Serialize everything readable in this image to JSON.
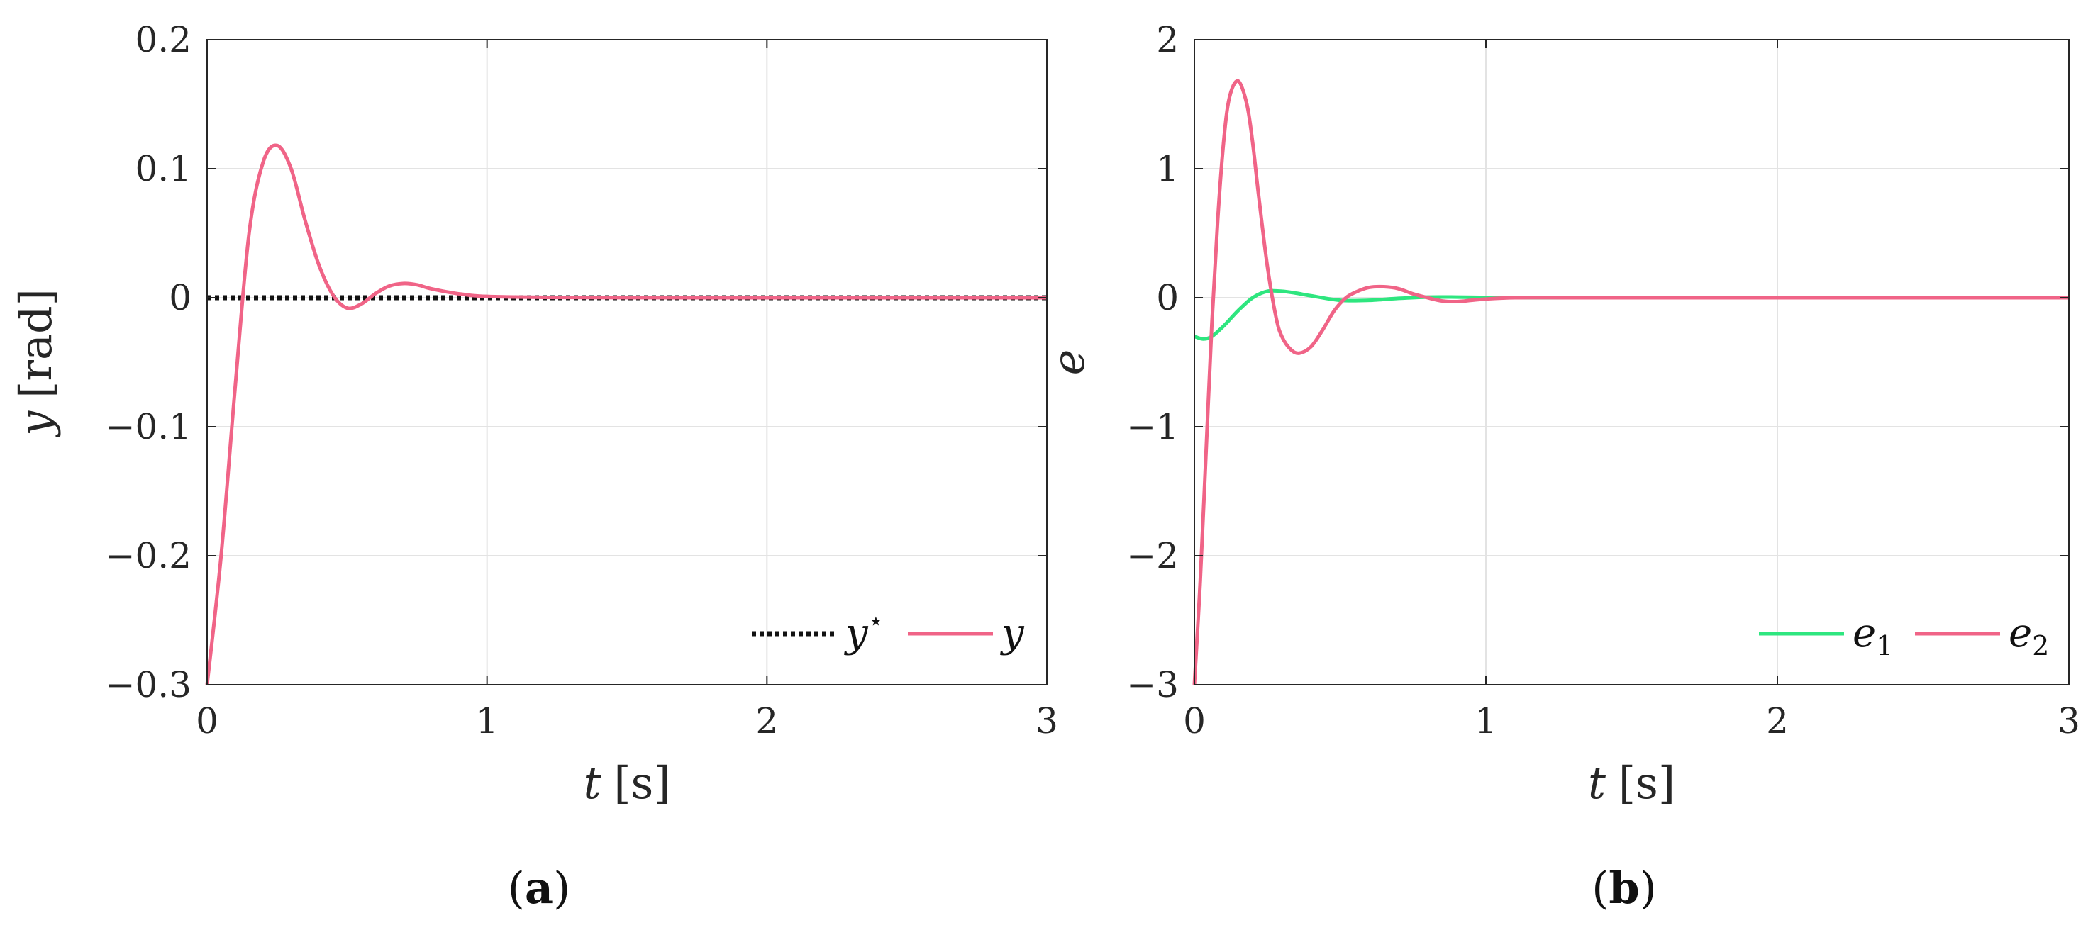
{
  "figure": {
    "captions": [
      "(a)",
      "(b)"
    ]
  },
  "chart_data": [
    {
      "type": "line",
      "panel": "(a)",
      "xlabel_var": "t",
      "xlabel_unit": "[s]",
      "ylabel_var": "y",
      "ylabel_unit": "[rad]",
      "xlim": [
        0,
        3
      ],
      "ylim": [
        -0.3,
        0.2
      ],
      "xticks": [
        0,
        1,
        2,
        3
      ],
      "yticks": [
        -0.3,
        -0.2,
        -0.1,
        0,
        0.1,
        0.2
      ],
      "xtick_labels": [
        "0",
        "1",
        "2",
        "3"
      ],
      "ytick_labels": [
        "−0.3",
        "−0.2",
        "−0.1",
        "0",
        "0.1",
        "0.2"
      ],
      "grid": true,
      "legend_placement": "bottom-right",
      "series": [
        {
          "name": "y⋆",
          "legend_base": "y",
          "legend_sup": "⋆",
          "color": "#111111",
          "style": "dotted",
          "x": [
            0,
            3
          ],
          "y": [
            0,
            0
          ]
        },
        {
          "name": "y",
          "legend_base": "y",
          "legend_sup": "",
          "color": "#f06487",
          "style": "solid",
          "x": [
            0,
            0.05,
            0.1,
            0.15,
            0.2,
            0.25,
            0.3,
            0.35,
            0.4,
            0.45,
            0.5,
            0.55,
            0.6,
            0.65,
            0.7,
            0.75,
            0.8,
            0.9,
            1.0,
            1.2,
            1.5,
            2.0,
            3.0
          ],
          "y": [
            -0.3,
            -0.2,
            -0.07,
            0.05,
            0.105,
            0.118,
            0.1,
            0.06,
            0.025,
            0.002,
            -0.008,
            -0.005,
            0.003,
            0.009,
            0.011,
            0.01,
            0.007,
            0.003,
            0.001,
            0.0003,
            0.0001,
            0,
            0
          ]
        }
      ]
    },
    {
      "type": "line",
      "panel": "(b)",
      "xlabel_var": "t",
      "xlabel_unit": "[s]",
      "ylabel_var": "e",
      "ylabel_unit": "",
      "xlim": [
        0,
        3
      ],
      "ylim": [
        -3,
        2
      ],
      "xticks": [
        0,
        1,
        2,
        3
      ],
      "yticks": [
        -3,
        -2,
        -1,
        0,
        1,
        2
      ],
      "xtick_labels": [
        "0",
        "1",
        "2",
        "3"
      ],
      "ytick_labels": [
        "−3",
        "−2",
        "−1",
        "0",
        "1",
        "2"
      ],
      "grid": true,
      "legend_placement": "bottom-right",
      "series": [
        {
          "name": "e1",
          "legend_base": "e",
          "legend_sub": "1",
          "color": "#2ee67f",
          "style": "solid",
          "x": [
            0,
            0.03,
            0.06,
            0.1,
            0.15,
            0.2,
            0.25,
            0.3,
            0.35,
            0.4,
            0.5,
            0.6,
            0.7,
            0.8,
            0.9,
            1.0,
            1.1,
            1.5,
            3.0
          ],
          "y": [
            -0.3,
            -0.32,
            -0.3,
            -0.22,
            -0.1,
            0.0,
            0.05,
            0.05,
            0.035,
            0.015,
            -0.02,
            -0.02,
            -0.005,
            0.005,
            0.005,
            0.002,
            0,
            0,
            0
          ]
        },
        {
          "name": "e2",
          "legend_base": "e",
          "legend_sub": "2",
          "color": "#f06487",
          "style": "solid",
          "x": [
            0,
            0.02,
            0.04,
            0.06,
            0.08,
            0.1,
            0.12,
            0.15,
            0.18,
            0.2,
            0.22,
            0.25,
            0.28,
            0.3,
            0.33,
            0.36,
            0.4,
            0.44,
            0.48,
            0.52,
            0.56,
            0.6,
            0.65,
            0.7,
            0.75,
            0.8,
            0.85,
            0.9,
            0.95,
            1.0,
            1.1,
            1.3,
            1.6,
            3.0
          ],
          "y": [
            -3.0,
            -2.2,
            -1.2,
            -0.2,
            0.6,
            1.2,
            1.55,
            1.68,
            1.5,
            1.2,
            0.8,
            0.25,
            -0.15,
            -0.3,
            -0.4,
            -0.43,
            -0.38,
            -0.25,
            -0.1,
            0.0,
            0.05,
            0.08,
            0.085,
            0.07,
            0.03,
            0.0,
            -0.025,
            -0.03,
            -0.02,
            -0.01,
            0,
            0,
            0,
            0
          ]
        }
      ]
    }
  ]
}
